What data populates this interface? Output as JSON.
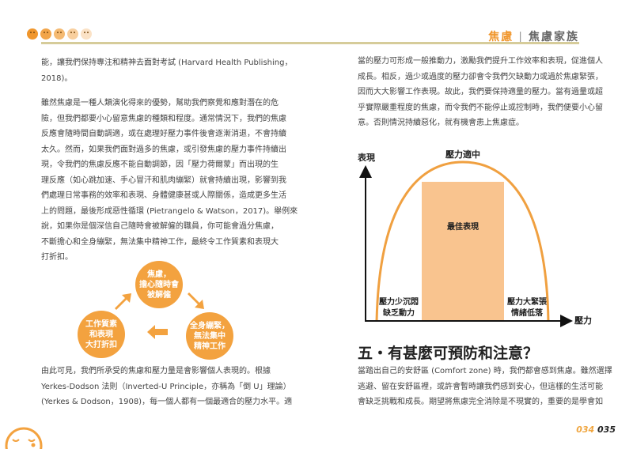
{
  "header": {
    "section": "焦慮",
    "chapter": "焦慮家族",
    "face_colors": [
      "#f0962c",
      "#f2a54a",
      "#f5ba72",
      "#f8cf9e",
      "#fbe2c6"
    ]
  },
  "left": {
    "p1": [
      "能，讓我們保持專注和精神去面對考試 (Harvard Health Publishing，",
      "2018)。"
    ],
    "p2": [
      "雖然焦慮是一種人類演化得來的優勢，幫助我們察覺和應對潛在的危",
      "險，但我們都要小心留意焦慮的種類和程度。通常情況下，我們的焦慮",
      "反應會隨時間自動調適，或在處理好壓力事件後會逐漸消退，不會持續",
      "太久。然而，如果我們面對過多的焦慮，或引發焦慮的壓力事件持續出",
      "現，令我們的焦慮反應不能自動調節，因「壓力荷爾蒙」而出現的生",
      "理反應（如心跳加速、手心冒汗和肌肉繃緊）就會持續出現，影響到我",
      "們處理日常事務的效率和表現、身體健康甚或人際關係，造成更多生活",
      "上的問題，最後形成惡性循環 (Pietrangelo & Watson，2017)。舉例來",
      "說，如果你是個深信自己隨時會被解僱的職員，你可能會過分焦慮，",
      "不斷擔心和全身繃緊，無法集中精神工作，最終令工作質素和表現大",
      "打折扣。"
    ],
    "cycle": {
      "top": [
        "焦慮，",
        "擔心隨時會",
        "被解僱"
      ],
      "right": [
        "全身繃緊，",
        "無法集中",
        "精神工作"
      ],
      "left": [
        "工作質素",
        "和表現",
        "大打折扣"
      ]
    },
    "p3": [
      "由此可見，我們所承受的焦慮和壓力量是會影響個人表現的。根據",
      "Yerkes-Dodson 法則（Inverted-U Principle，亦稱為「倒 U」理論）",
      "(Yerkes & Dodson，1908)，每一個人都有一個最適合的壓力水平。適"
    ]
  },
  "right": {
    "p1": [
      "當的壓力可形成一般推動力，激勵我們提升工作效率和表現，促進個人",
      "成長。相反，過少或過度的壓力卻會令我們欠缺動力或過於焦慮緊張，",
      "因而大大影響工作表現。故此，我們要保持適量的壓力。當有過量或超",
      "乎實際嚴重程度的焦慮，而令我們不能停止或控制時，我們便要小心留",
      "意。否則情況持續惡化，就有機會患上焦慮症。"
    ],
    "diagram": {
      "y_label": "表現",
      "x_label": "壓力",
      "peak_label": "壓力適中",
      "optimal_label": "最佳表現",
      "low_label": [
        "壓力少沉悶",
        "缺乏動力"
      ],
      "high_label": [
        "壓力大緊張",
        "情緒低落"
      ],
      "curve_color": "#f0a040",
      "zone_color": "#f9c48f"
    },
    "heading": "五・有甚麼可預防和注意？",
    "p2": [
      "當踏出自己的安舒區 (Comfort zone) 時，我們都會感到焦慮。雖然選擇",
      "逃避、留在安舒區裡，或許會暫時讓我們感到安心，但這樣的生活可能",
      "會缺乏挑戰和成長。期望將焦慮完全消除是不現實的，重要的是學會如"
    ]
  },
  "page_numbers": {
    "left": "034",
    "right": "035"
  }
}
